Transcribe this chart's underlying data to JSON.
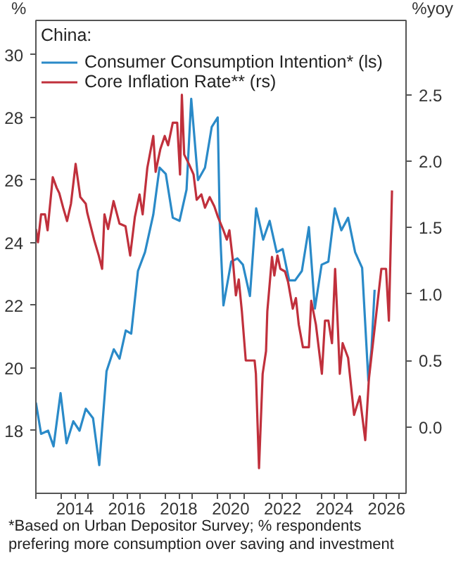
{
  "chart_data": {
    "type": "line",
    "legend_title": "China:",
    "ylabel": "%",
    "y2label": "%yoy",
    "annotations": [
      "*Based on Urban Depositor Survey; % respondents prefering more consumption over saving and investment"
    ],
    "xlim": [
      2013.0,
      2027.25
    ],
    "xticks": [
      {
        "value": 2013,
        "label": null
      },
      {
        "value": 2014,
        "label": null
      },
      {
        "value": 2015,
        "label": null
      },
      {
        "value": 2016,
        "label": null
      },
      {
        "value": 2017,
        "label": null
      },
      {
        "value": 2018,
        "label": null
      },
      {
        "value": 2019,
        "label": null
      },
      {
        "value": 2020,
        "label": null
      },
      {
        "value": 2021,
        "label": null
      },
      {
        "value": 2022,
        "label": null
      },
      {
        "value": 2023,
        "label": null
      },
      {
        "value": 2024,
        "label": null
      },
      {
        "value": 2025,
        "label": null
      },
      {
        "value": 2026,
        "label": null
      },
      {
        "value": 2027,
        "label": null
      },
      {
        "value": 2014.5,
        "label": "2014"
      },
      {
        "value": 2016.5,
        "label": "2016"
      },
      {
        "value": 2018.5,
        "label": "2018"
      },
      {
        "value": 2020.5,
        "label": "2020"
      },
      {
        "value": 2022.5,
        "label": "2022"
      },
      {
        "value": 2024.5,
        "label": "2024"
      },
      {
        "value": 2026.5,
        "label": "2026"
      }
    ],
    "ylim": [
      16.0,
      31.1
    ],
    "yticks": [
      18,
      20,
      22,
      24,
      26,
      28,
      30
    ],
    "y2lim": [
      -0.5,
      3.06
    ],
    "y2ticks": [
      {
        "value": 0,
        "label": "0.0"
      },
      0.5,
      {
        "value": 1,
        "label": "1.0"
      },
      1.5,
      {
        "value": 2,
        "label": "2.0"
      },
      2.5
    ],
    "grid": false,
    "legend": "top left",
    "line_style": "solid",
    "marker": "none",
    "series": [
      {
        "name": "Consumer Consumption Intention* (ls)",
        "color": "#2a8ac8",
        "axis": "y",
        "x": [
          2013.0,
          2013.2,
          2013.47,
          2013.68,
          2013.95,
          2014.18,
          2014.44,
          2014.68,
          2014.92,
          2015.2,
          2015.44,
          2015.72,
          2016.0,
          2016.22,
          2016.46,
          2016.67,
          2016.93,
          2017.2,
          2017.52,
          2017.76,
          2018.0,
          2018.27,
          2018.53,
          2018.8,
          2018.98,
          2019.24,
          2019.51,
          2019.77,
          2020.0,
          2020.08,
          2020.22,
          2020.52,
          2020.76,
          2020.97,
          2021.24,
          2021.48,
          2021.75,
          2022.0,
          2022.27,
          2022.5,
          2022.75,
          2022.98,
          2023.24,
          2023.51,
          2023.74,
          2024.0,
          2024.26,
          2024.51,
          2024.76,
          2025.02,
          2025.29,
          2025.56,
          2025.8,
          2025.92,
          2026.04
        ],
        "values": [
          18.9,
          17.9,
          18.0,
          17.5,
          19.2,
          17.6,
          18.3,
          18.0,
          18.7,
          18.4,
          16.9,
          19.9,
          20.6,
          20.3,
          21.2,
          21.1,
          23.1,
          23.7,
          24.9,
          26.4,
          26.2,
          24.8,
          24.7,
          25.7,
          28.6,
          26.0,
          26.4,
          27.7,
          28.0,
          24.6,
          22.0,
          23.4,
          23.5,
          23.3,
          22.3,
          25.1,
          24.1,
          24.7,
          23.7,
          23.8,
          22.8,
          22.8,
          23.1,
          24.5,
          21.9,
          23.3,
          23.4,
          25.1,
          24.4,
          24.8,
          23.7,
          23.2,
          19.6,
          20.6,
          22.5
        ]
      },
      {
        "name": "Core Inflation Rate** (rs)",
        "color": "#c0303c",
        "axis": "y2",
        "x": [
          2013.0,
          2013.08,
          2013.2,
          2013.35,
          2013.45,
          2013.65,
          2013.8,
          2013.9,
          2014.05,
          2014.2,
          2014.35,
          2014.53,
          2014.71,
          2014.92,
          2014.98,
          2015.24,
          2015.42,
          2015.55,
          2015.64,
          2015.78,
          2015.99,
          2016.22,
          2016.45,
          2016.63,
          2016.81,
          2016.99,
          2017.11,
          2017.29,
          2017.52,
          2017.61,
          2017.79,
          2017.96,
          2018.09,
          2018.27,
          2018.44,
          2018.55,
          2018.62,
          2018.71,
          2018.89,
          2019.07,
          2019.19,
          2019.37,
          2019.51,
          2019.69,
          2019.87,
          2020.01,
          2020.22,
          2020.35,
          2020.45,
          2020.58,
          2020.7,
          2020.81,
          2020.93,
          2021.08,
          2021.42,
          2021.47,
          2021.59,
          2021.73,
          2021.86,
          2021.91,
          2022.09,
          2022.18,
          2022.3,
          2022.41,
          2022.59,
          2022.71,
          2022.89,
          2023.01,
          2023.12,
          2023.28,
          2023.51,
          2023.6,
          2023.78,
          2024.01,
          2024.13,
          2024.26,
          2024.4,
          2024.52,
          2024.63,
          2024.7,
          2024.81,
          2025.02,
          2025.25,
          2025.47,
          2025.68,
          2025.82,
          2026.0,
          2026.3,
          2026.48,
          2026.59,
          2026.71
        ],
        "values": [
          1.49,
          1.39,
          1.6,
          1.6,
          1.48,
          1.88,
          1.8,
          1.76,
          1.65,
          1.55,
          1.68,
          1.98,
          1.73,
          1.68,
          1.61,
          1.41,
          1.29,
          1.19,
          1.6,
          1.49,
          1.7,
          1.53,
          1.51,
          1.29,
          1.58,
          1.75,
          1.6,
          1.95,
          2.19,
          1.92,
          2.09,
          2.19,
          2.12,
          2.29,
          2.29,
          1.9,
          2.5,
          2.05,
          1.98,
          1.9,
          1.71,
          1.75,
          1.65,
          1.73,
          1.66,
          1.58,
          1.48,
          1.41,
          1.48,
          1.26,
          0.99,
          1.11,
          0.87,
          0.5,
          0.5,
          0.4,
          -0.31,
          0.4,
          0.57,
          0.87,
          1.28,
          1.14,
          1.29,
          1.19,
          1.17,
          1.09,
          0.89,
          0.97,
          0.77,
          0.6,
          0.6,
          0.95,
          0.77,
          0.4,
          0.8,
          0.8,
          0.63,
          1.19,
          0.73,
          0.4,
          0.63,
          0.52,
          0.09,
          0.23,
          -0.1,
          0.36,
          0.67,
          1.19,
          1.19,
          0.8,
          1.78
        ]
      }
    ]
  }
}
